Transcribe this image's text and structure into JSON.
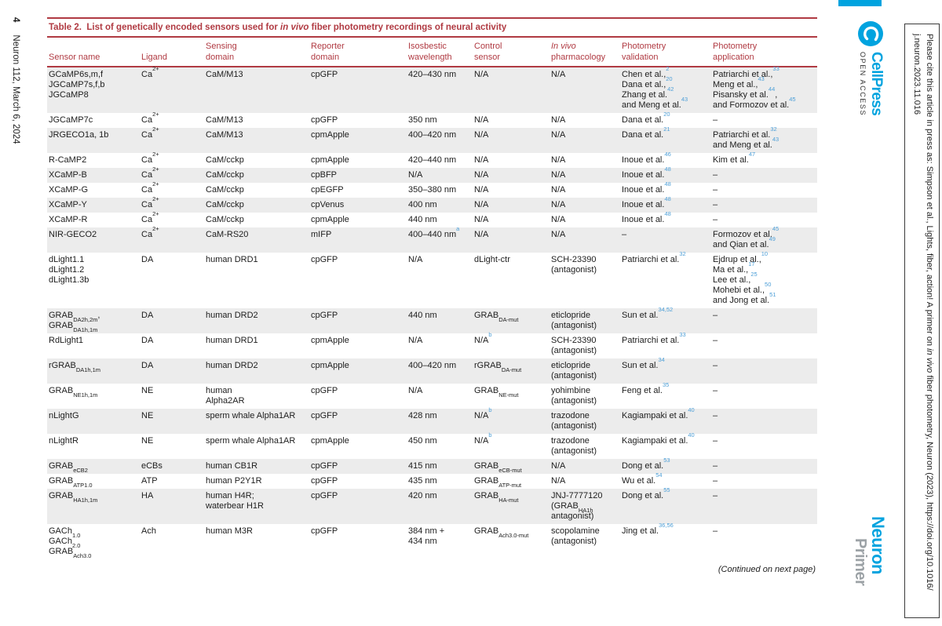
{
  "colors": {
    "accent": "#B03A42",
    "shade": "#ECECEC",
    "ref": "#4FA0D8",
    "brand": "#00A3DF",
    "primergray": "#9CA2A6"
  },
  "left_margin": {
    "page_number": "4",
    "issue": "Neuron 112, March 6, 2024"
  },
  "branding": {
    "publisher": "CellPress",
    "open_access": "OPEN ACCESS",
    "journal": "Neuron",
    "article_type": "Primer"
  },
  "citation_notice": "Please cite this article in press as: Simpson et al., Lights, fiber, action! A primer on *in vivo* fiber photometry, Neuron (2023), https://doi.org/10.1016/\nj.neuron.2023.11.016",
  "table": {
    "title": "Table 2.  List of genetically encoded sensors used for *in vivo* fiber photometry recordings of neural activity",
    "footer": "(Continued on next page)",
    "columns": [
      {
        "label": "Sensor name",
        "width": 118
      },
      {
        "label": "Ligand",
        "width": 82
      },
      {
        "label": "Sensing\ndomain",
        "width": 134
      },
      {
        "label": "Reporter\ndomain",
        "width": 124
      },
      {
        "label": "Isosbestic\nwavelength",
        "width": 84
      },
      {
        "label": "Control\nsensor",
        "width": 98
      },
      {
        "label": "*In vivo*\npharmacology",
        "width": 90
      },
      {
        "label": "Photometry\nvalidation",
        "width": 116
      },
      {
        "label": "Photometry\napplication",
        "width": 135
      }
    ],
    "rows": [
      [
        "GCaMP6s,m,f\nJGCaMP7s,f,b\nJGCaMP8",
        "Ca^2+^",
        "CaM/M13",
        "cpGFP",
        "420–430 nm",
        "N/A",
        "N/A",
        "Chen et al.,[2]\nDana et al.,[20]\nZhang et al.[42]\nand Meng et al.[43]",
        "Patriarchi et al.,[33]\nMeng et al.,[43]\nPisansky et al.[44],\nand Formozov et al.[45]"
      ],
      [
        "JGCaMP7c",
        "Ca^2+^",
        "CaM/M13",
        "cpGFP",
        "350 nm",
        "N/A",
        "N/A",
        "Dana et al.[20]",
        "–"
      ],
      [
        "JRGECO1a, 1b",
        "Ca^2+^",
        "CaM/M13",
        "cpmApple",
        "400–420 nm",
        "N/A",
        "N/A",
        "Dana et al.[21]",
        "Patriarchi et al.[32]\nand Meng et al.[43]"
      ],
      [
        "R-CaMP2",
        "Ca^2+^",
        "CaM/cckp",
        "cpmApple",
        "420–440 nm",
        "N/A",
        "N/A",
        "Inoue et al.[46]",
        "Kim et al.[47]"
      ],
      [
        "XCaMP-B",
        "Ca^2+^",
        "CaM/cckp",
        "cpBFP",
        "N/A",
        "N/A",
        "N/A",
        "Inoue et al.[48]",
        "–"
      ],
      [
        "XCaMP-G",
        "Ca^2+^",
        "CaM/cckp",
        "cpEGFP",
        "350–380 nm",
        "N/A",
        "N/A",
        "Inoue et al.[48]",
        "–"
      ],
      [
        "XCaMP-Y",
        "Ca^2+^",
        "CaM/cckp",
        "cpVenus",
        "400 nm",
        "N/A",
        "N/A",
        "Inoue et al.[48]",
        "–"
      ],
      [
        "XCaMP-R",
        "Ca^2+^",
        "CaM/cckp",
        "cpmApple",
        "440 nm",
        "N/A",
        "N/A",
        "Inoue et al.[48]",
        "–"
      ],
      [
        "NIR-GECO2",
        "Ca^2+^",
        "CaM-RS20",
        "mIFP",
        "400–440 nm[a]",
        "N/A",
        "N/A",
        "–",
        "Formozov et al.[45]\nand Qian et al.[49]"
      ],
      [
        "dLight1.1\ndLight1.2\ndLight1.3b",
        "DA",
        "human DRD1",
        "cpGFP",
        "N/A",
        "dLight-ctr",
        "SCH-23390\n(antagonist)",
        "Patriarchi et al.[32]",
        "Ejdrup et al.,[10]\nMa et al.,[17]\nLee et al.,[25]\nMohebi et al.,[50]\nand Jong et al.[51]"
      ],
      [
        "GRAB~DA2h,2m~,\nGRAB~DA1h,1m~",
        "DA",
        "human DRD2",
        "cpGFP",
        "440 nm",
        "GRAB~DA-mut~",
        "eticlopride\n(antagonist)",
        "Sun et al.[34,52]",
        "–"
      ],
      [
        "RdLight1",
        "DA",
        "human DRD1",
        "cpmApple",
        "N/A",
        "N/A[b]",
        "SCH-23390\n(antagonist)",
        "Patriarchi et al.[33]",
        "–"
      ],
      [
        "rGRAB~DA1h,1m~",
        "DA",
        "human DRD2",
        "cpmApple",
        "400–420 nm",
        "rGRAB~DA-mut~",
        "eticlopride\n(antagonist)",
        "Sun et al.[34]",
        "–"
      ],
      [
        "GRAB~NE1h,1m~",
        "NE",
        "human\nAlpha2AR",
        "cpGFP",
        "N/A",
        "GRAB~NE-mut~",
        "yohimbine\n(antagonist)",
        "Feng et al.[35]",
        "–"
      ],
      [
        "nLightG",
        "NE",
        "sperm whale Alpha1AR",
        "cpGFP",
        "428 nm",
        "N/A[b]",
        "trazodone\n(antagonist)",
        "Kagiampaki et al.[40]",
        "–"
      ],
      [
        "nLightR",
        "NE",
        "sperm whale Alpha1AR",
        "cpmApple",
        "450 nm",
        "N/A[b]",
        "trazodone\n(antagonist)",
        "Kagiampaki et al.[40]",
        "–"
      ],
      [
        "GRAB~eCB2~",
        "eCBs",
        "human CB1R",
        "cpGFP",
        "415 nm",
        "GRAB~eCB-mut~",
        "N/A",
        "Dong et al.[53]",
        "–"
      ],
      [
        "GRAB~ATP1.0~",
        "ATP",
        "human P2Y1R",
        "cpGFP",
        "435 nm",
        "GRAB~ATP-mut~",
        "N/A",
        "Wu et al.[54]",
        "–"
      ],
      [
        "GRAB~HA1h,1m~",
        "HA",
        "human H4R;\nwaterbear H1R",
        "cpGFP",
        "420 nm",
        "GRAB~HA-mut~",
        "JNJ-7777120\n(GRAB~HA1h~\nantagonist)",
        "Dong et al.[55]",
        "–"
      ],
      [
        "GACh~1.0~\nGACh~2.0~\nGRAB~Ach3.0~",
        "Ach",
        "human M3R",
        "cpGFP",
        "384 nm +\n434 nm",
        "GRAB~Ach3.0-mut~",
        "scopolamine\n(antagonist)",
        "Jing et al.[36,56]",
        "–"
      ]
    ]
  }
}
